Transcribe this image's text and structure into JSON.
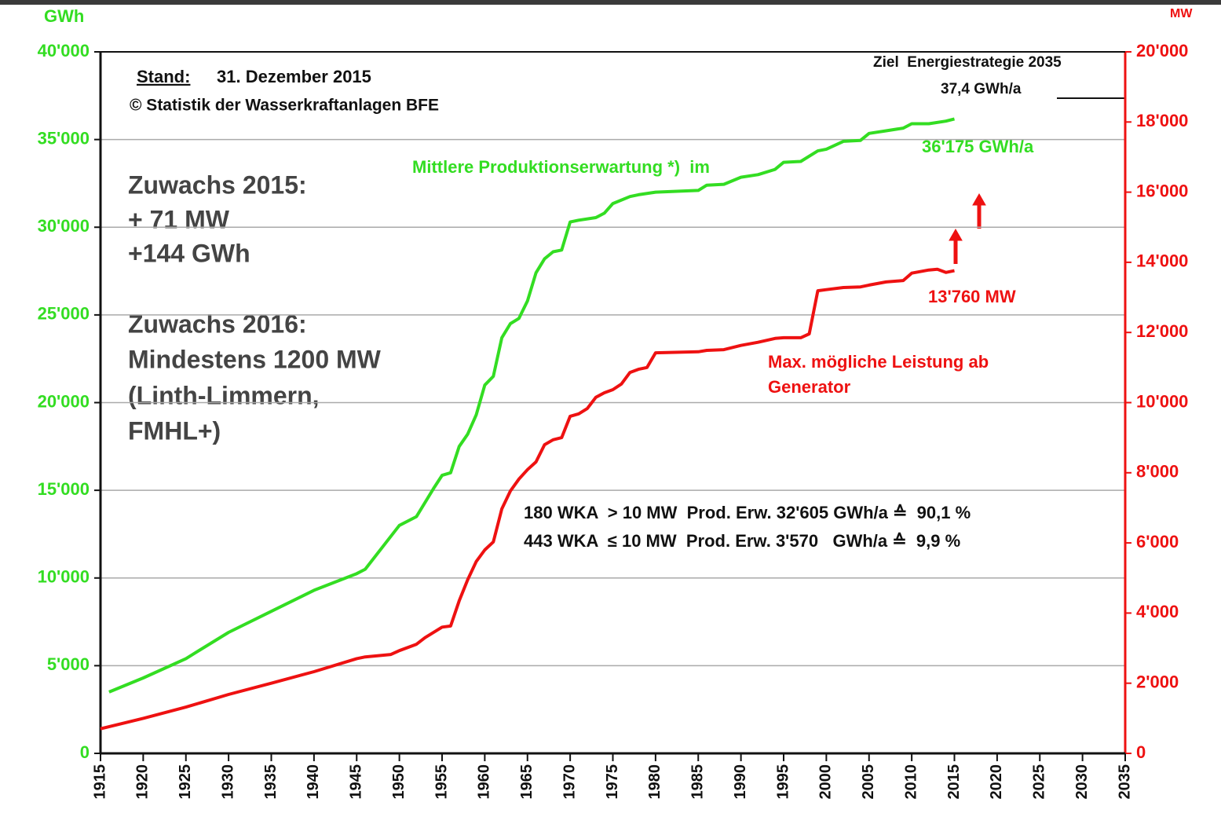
{
  "chart_data": {
    "type": "line",
    "y_label": "GWh",
    "y2_label": "MW",
    "xlim": [
      1915,
      2035
    ],
    "xticks": [
      1915,
      1920,
      1925,
      1930,
      1935,
      1940,
      1945,
      1950,
      1955,
      1960,
      1965,
      1970,
      1975,
      1980,
      1985,
      1990,
      1995,
      2000,
      2005,
      2010,
      2015,
      2020,
      2025,
      2030,
      2035
    ],
    "ylim": [
      0,
      40000
    ],
    "yticks": [
      0,
      {
        "value": 5000,
        "label": "5'000"
      },
      {
        "value": 10000,
        "label": "10'000"
      },
      {
        "value": 15000,
        "label": "15'000"
      },
      {
        "value": 20000,
        "label": "20'000"
      },
      {
        "value": 25000,
        "label": "25'000"
      },
      {
        "value": 30000,
        "label": "30'000"
      },
      {
        "value": 35000,
        "label": "35'000"
      },
      {
        "value": 40000,
        "label": "40'000"
      }
    ],
    "y2lim": [
      0,
      20000
    ],
    "y2ticks": [
      0,
      {
        "value": 2000,
        "label": "2'000"
      },
      {
        "value": 4000,
        "label": "4'000"
      },
      {
        "value": 6000,
        "label": "6'000"
      },
      {
        "value": 8000,
        "label": "8'000"
      },
      {
        "value": 10000,
        "label": "10'000"
      },
      {
        "value": 12000,
        "label": "12'000"
      },
      {
        "value": 14000,
        "label": "14'000"
      },
      {
        "value": 16000,
        "label": "16'000"
      },
      {
        "value": 18000,
        "label": "18'000"
      },
      {
        "value": 20000,
        "label": "20'000"
      }
    ],
    "grid": true,
    "series": [
      {
        "color": "#33dd22",
        "x": [
          1916,
          1920,
          1925,
          1926,
          1930,
          1935,
          1940,
          1945,
          1946,
          1950,
          1952,
          1954,
          1955,
          1956,
          1957,
          1958,
          1959,
          1960,
          1961,
          1962,
          1963,
          1964,
          1965,
          1966,
          1967,
          1968,
          1969,
          1970,
          1971,
          1973,
          1974,
          1975,
          1977,
          1978,
          1980,
          1985,
          1986,
          1988,
          1990,
          1992,
          1994,
          1995,
          1997,
          1999,
          2000,
          2002,
          2004,
          2005,
          2007,
          2009,
          2010,
          2012,
          2014,
          2015
        ],
        "values": [
          3500,
          4300,
          5400,
          5700,
          6900,
          8100,
          9300,
          10250,
          10500,
          13000,
          13500,
          15100,
          15850,
          16000,
          17500,
          18200,
          19300,
          21000,
          21500,
          23700,
          24500,
          24800,
          25800,
          27400,
          28200,
          28600,
          28700,
          30300,
          30400,
          30550,
          30800,
          31350,
          31750,
          31850,
          32000,
          32100,
          32400,
          32450,
          32850,
          33000,
          33300,
          33700,
          33750,
          34350,
          34450,
          34900,
          34950,
          35350,
          35500,
          35650,
          35900,
          35900,
          36050,
          36175
        ]
      },
      {
        "color": "#ee1111",
        "axis": "y2",
        "x": [
          1915,
          1920,
          1925,
          1930,
          1935,
          1940,
          1945,
          1946,
          1949,
          1950,
          1952,
          1953,
          1955,
          1956,
          1957,
          1958,
          1959,
          1960,
          1961,
          1962,
          1963,
          1964,
          1965,
          1966,
          1967,
          1968,
          1969,
          1970,
          1971,
          1972,
          1973,
          1974,
          1975,
          1976,
          1977,
          1978,
          1979,
          1980,
          1985,
          1986,
          1988,
          1990,
          1992,
          1994,
          1995,
          1997,
          1998,
          1999,
          2000,
          2002,
          2004,
          2005,
          2007,
          2009,
          2010,
          2012,
          2013,
          2014,
          2015
        ],
        "values": [
          700,
          1000,
          1320,
          1680,
          2000,
          2330,
          2700,
          2750,
          2820,
          2930,
          3110,
          3300,
          3600,
          3630,
          4350,
          4950,
          5470,
          5800,
          6030,
          6970,
          7480,
          7820,
          8090,
          8310,
          8800,
          8940,
          9000,
          9610,
          9680,
          9830,
          10150,
          10280,
          10370,
          10530,
          10860,
          10950,
          11000,
          11420,
          11450,
          11490,
          11510,
          11630,
          11720,
          11830,
          11850,
          11850,
          11960,
          13190,
          13220,
          13280,
          13300,
          13350,
          13440,
          13480,
          13690,
          13780,
          13800,
          13710,
          13760
        ]
      }
    ],
    "annotations": [
      "Stand:",
      "31. Dezember 2015",
      "© Statistik der Wasserkraftanlagen BFE",
      "Zuwachs 2015:",
      "+ 71 MW",
      "+144 GWh",
      "Zuwachs 2016:",
      "Mindestens 1200 MW",
      "(Linth-Limmern,",
      "FMHL+)",
      "Mittlere Produktionserwartung *)  im",
      "36'175 GWh/a",
      "13'760 MW",
      "Max. mögliche Leistung ab",
      "Generator",
      "Ziel  Energiestrategie 2035",
      "37,4 GWh/a",
      "180 WKA  > 10 MW  Prod. Erw. 32'605 GWh/a ≙  90,1 %",
      "443 WKA  ≤ 10 MW  Prod. Erw. 3'570   GWh/a ≙  9,9 %"
    ]
  }
}
